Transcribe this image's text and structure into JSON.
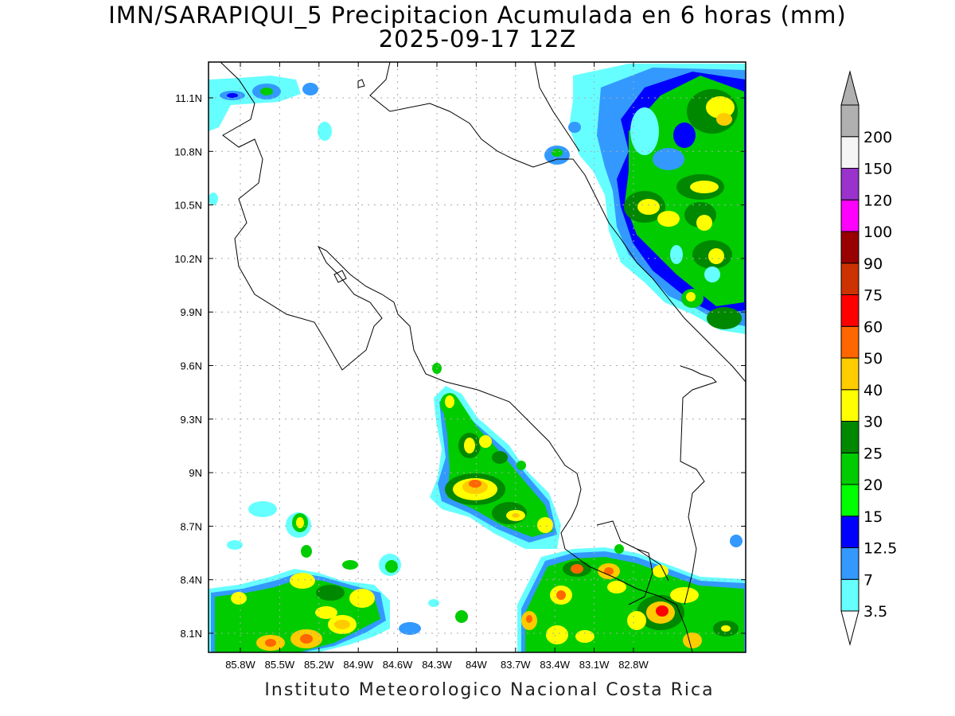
{
  "header": {
    "title_line1": "IMN/SARAPIQUI_5 Precipitacion Acumulada en 6 horas (mm)",
    "title_line2": "2025-09-17 12Z"
  },
  "map": {
    "x_ticks": [
      "85.8W",
      "85.5W",
      "85.2W",
      "84.9W",
      "84.6W",
      "84.3W",
      "84W",
      "83.7W",
      "83.4W",
      "83.1W",
      "82.8W"
    ],
    "y_ticks": [
      "11.1N",
      "10.8N",
      "10.5N",
      "10.2N",
      "9.9N",
      "9.6N",
      "9.3N",
      "9N",
      "8.7N",
      "8.4N",
      "8.1N"
    ],
    "grid": "dotted"
  },
  "colorbar": {
    "levels": [
      {
        "label": "3.5",
        "color": "#66ffff"
      },
      {
        "label": "7",
        "color": "#3399ff"
      },
      {
        "label": "12.5",
        "color": "#0000ff"
      },
      {
        "label": "15",
        "color": "#00ff00"
      },
      {
        "label": "20",
        "color": "#00cc00"
      },
      {
        "label": "25",
        "color": "#008800"
      },
      {
        "label": "30",
        "color": "#ffff00"
      },
      {
        "label": "40",
        "color": "#ffcc00"
      },
      {
        "label": "50",
        "color": "#ff6600"
      },
      {
        "label": "60",
        "color": "#ff0000"
      },
      {
        "label": "75",
        "color": "#cc3300"
      },
      {
        "label": "90",
        "color": "#990000"
      },
      {
        "label": "100",
        "color": "#ff00ff"
      },
      {
        "label": "120",
        "color": "#9933cc"
      },
      {
        "label": "150",
        "color": "#f5f5f5"
      },
      {
        "label": "200",
        "color": "#b0b0b0"
      }
    ]
  },
  "footer": "Instituto Meteorologico Nacional Costa Rica"
}
